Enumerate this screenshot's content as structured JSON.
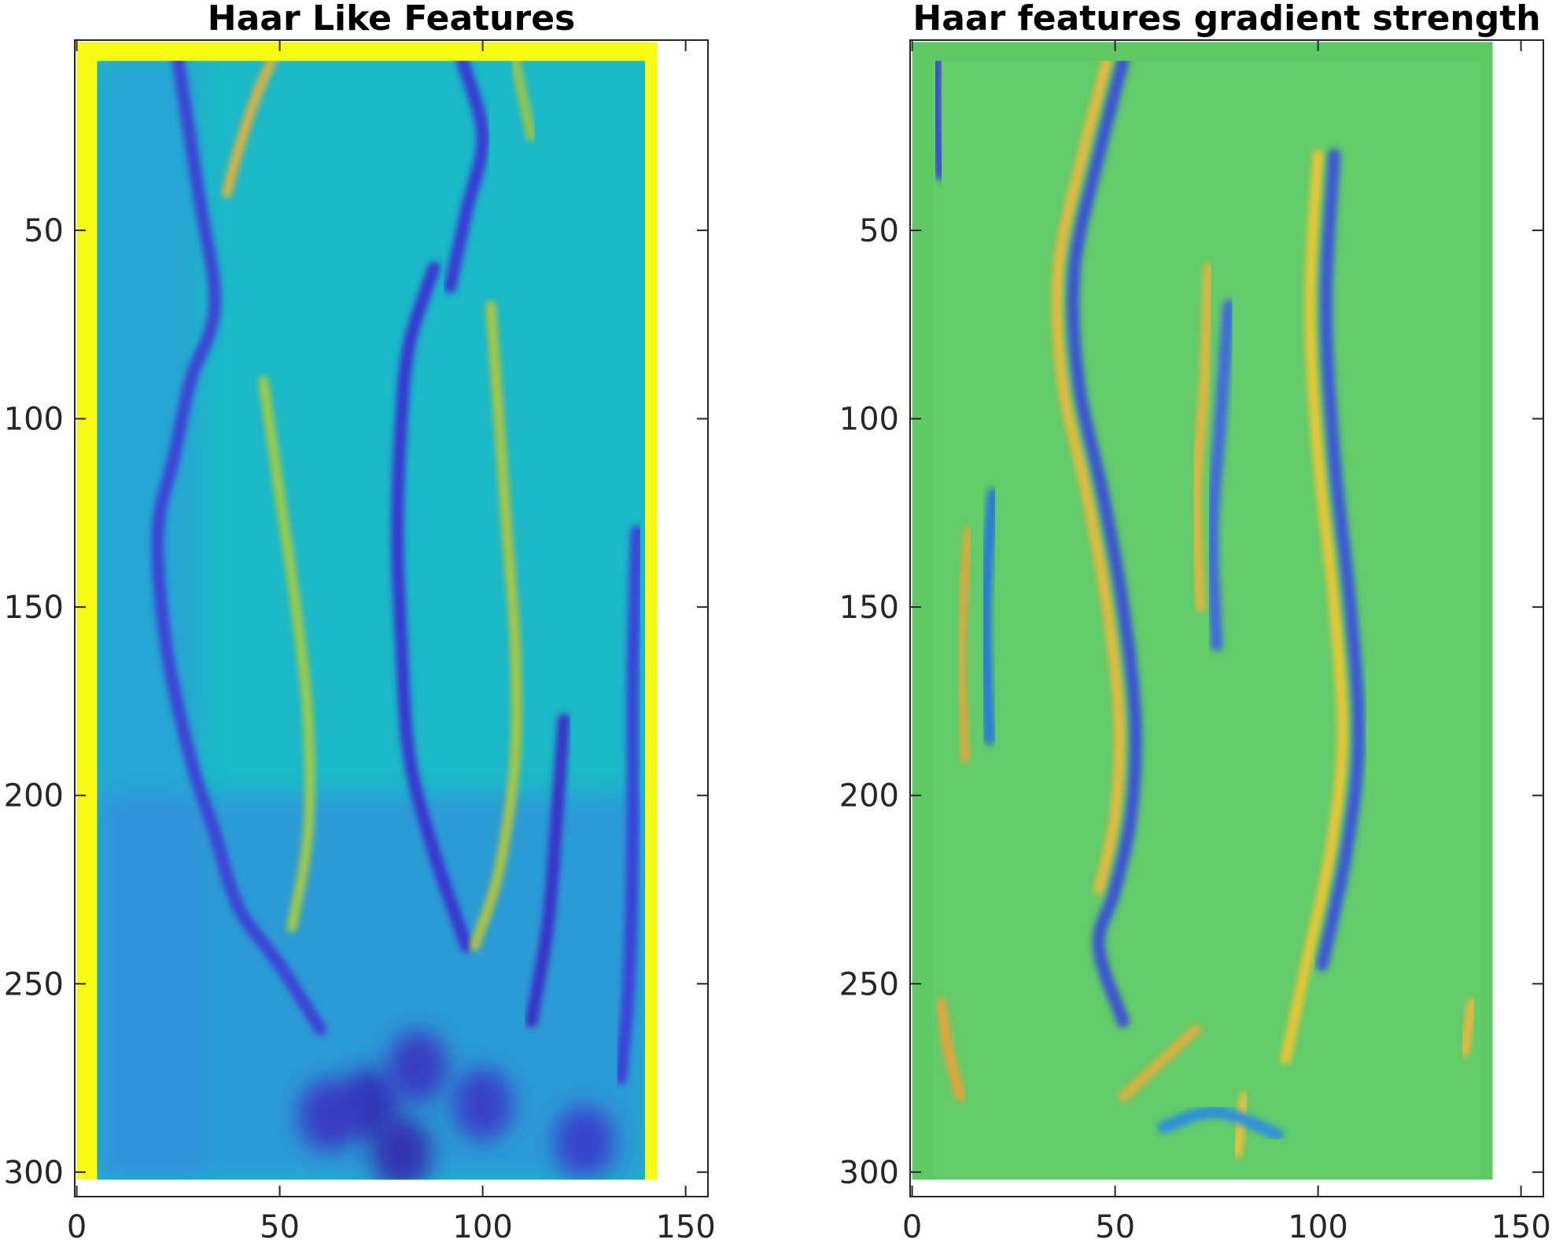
{
  "chart_data": [
    {
      "type": "heatmap",
      "title": "Haar Like Features",
      "xlabel": "",
      "ylabel": "",
      "xlim": [
        -0.5,
        155.5
      ],
      "ylim": [
        306.5,
        -0.5
      ],
      "image_extent": {
        "x": [
          0,
          143
        ],
        "y": [
          0,
          302
        ]
      },
      "inner_extent": {
        "x": [
          5,
          140
        ],
        "y": [
          5,
          302
        ]
      },
      "xticks": [
        0,
        50,
        100,
        150
      ],
      "yticks": [
        50,
        100,
        150,
        200,
        250,
        300
      ],
      "grid": false,
      "colormap": "parula",
      "border_color": "#f9fa14",
      "background_color": "#1bb8c8",
      "ridges": [
        {
          "kind": "low",
          "color": "#3e3fd6",
          "points": [
            [
              25,
              5
            ],
            [
              30,
              40
            ],
            [
              34,
              70
            ],
            [
              28,
              90
            ],
            [
              24,
              110
            ],
            [
              20,
              130
            ],
            [
              22,
              160
            ],
            [
              28,
              190
            ],
            [
              34,
              210
            ],
            [
              40,
              230
            ],
            [
              50,
              245
            ],
            [
              60,
              262
            ]
          ]
        },
        {
          "kind": "low",
          "color": "#3a32d0",
          "points": [
            [
              88,
              60
            ],
            [
              82,
              80
            ],
            [
              80,
              100
            ],
            [
              79,
              130
            ],
            [
              80,
              160
            ],
            [
              82,
              190
            ],
            [
              88,
              215
            ],
            [
              96,
              240
            ]
          ]
        },
        {
          "kind": "low",
          "color": "#3a34d4",
          "points": [
            [
              95,
              5
            ],
            [
              100,
              25
            ],
            [
              96,
              45
            ],
            [
              92,
              65
            ]
          ]
        },
        {
          "kind": "low",
          "color": "#3b2fc8",
          "points": [
            [
              120,
              180
            ],
            [
              118,
              210
            ],
            [
              116,
              235
            ],
            [
              112,
              260
            ]
          ]
        },
        {
          "kind": "low",
          "color": "#3d3cd8",
          "points": [
            [
              138,
              130
            ],
            [
              137,
              170
            ],
            [
              137,
              210
            ],
            [
              136,
              250
            ],
            [
              134,
              275
            ]
          ]
        },
        {
          "kind": "high",
          "color": "#a8cc40",
          "points": [
            [
              46,
              90
            ],
            [
              50,
              120
            ],
            [
              54,
              150
            ],
            [
              57,
              180
            ],
            [
              57,
              210
            ],
            [
              53,
              235
            ]
          ]
        },
        {
          "kind": "high",
          "color": "#b6c838",
          "points": [
            [
              102,
              70
            ],
            [
              104,
              100
            ],
            [
              106,
              130
            ],
            [
              108,
              160
            ],
            [
              108,
              190
            ],
            [
              104,
              220
            ],
            [
              98,
              240
            ]
          ]
        },
        {
          "kind": "high",
          "color": "#e3b23a",
          "points": [
            [
              48,
              5
            ],
            [
              44,
              15
            ],
            [
              40,
              28
            ],
            [
              37,
              40
            ]
          ]
        },
        {
          "kind": "high",
          "color": "#9cc64a",
          "points": [
            [
              108,
              5
            ],
            [
              110,
              15
            ],
            [
              112,
              25
            ]
          ]
        }
      ],
      "dark_blobs": [
        {
          "cx": 72,
          "cy": 282,
          "color": "#3625b2"
        },
        {
          "cx": 80,
          "cy": 295,
          "color": "#3522a8"
        },
        {
          "cx": 62,
          "cy": 285,
          "color": "#3a2fc2"
        },
        {
          "cx": 100,
          "cy": 282,
          "color": "#3a33c8"
        },
        {
          "cx": 125,
          "cy": 292,
          "color": "#3b35cc"
        },
        {
          "cx": 84,
          "cy": 272,
          "color": "#3a2fc0"
        }
      ]
    },
    {
      "type": "heatmap",
      "title": "Haar features gradient strength",
      "xlabel": "",
      "ylabel": "",
      "xlim": [
        -0.5,
        155.5
      ],
      "ylim": [
        306.5,
        -0.5
      ],
      "image_extent": {
        "x": [
          0,
          143
        ],
        "y": [
          0,
          302
        ]
      },
      "inner_extent": {
        "x": [
          5,
          140
        ],
        "y": [
          5,
          302
        ]
      },
      "xticks": [
        0,
        50,
        100,
        150
      ],
      "yticks": [
        50,
        100,
        150,
        200,
        250,
        300
      ],
      "grid": false,
      "colormap": "parula",
      "border_color": "#5ec962",
      "background_color": "#62cb6a",
      "ridges": [
        {
          "kind": "high",
          "color": "#f1b83a",
          "points": [
            [
              48,
              5
            ],
            [
              42,
              30
            ],
            [
              36,
              60
            ],
            [
              37,
              90
            ],
            [
              43,
              120
            ],
            [
              48,
              150
            ],
            [
              51,
              180
            ],
            [
              50,
              205
            ],
            [
              46,
              225
            ]
          ]
        },
        {
          "kind": "low",
          "color": "#3b4fd8",
          "points": [
            [
              52,
              5
            ],
            [
              46,
              30
            ],
            [
              40,
              60
            ],
            [
              41,
              90
            ],
            [
              47,
              120
            ],
            [
              52,
              150
            ],
            [
              55,
              180
            ],
            [
              54,
              205
            ],
            [
              50,
              225
            ],
            [
              46,
              240
            ],
            [
              52,
              260
            ]
          ]
        },
        {
          "kind": "high",
          "color": "#f7c632",
          "points": [
            [
              100,
              30
            ],
            [
              98,
              70
            ],
            [
              100,
              110
            ],
            [
              104,
              150
            ],
            [
              106,
              185
            ],
            [
              103,
              215
            ],
            [
              97,
              245
            ],
            [
              92,
              270
            ]
          ]
        },
        {
          "kind": "low",
          "color": "#3b52dc",
          "points": [
            [
              104,
              30
            ],
            [
              102,
              70
            ],
            [
              104,
              110
            ],
            [
              108,
              150
            ],
            [
              110,
              185
            ],
            [
              107,
              215
            ],
            [
              101,
              245
            ]
          ]
        },
        {
          "kind": "high",
          "color": "#e8b43e",
          "points": [
            [
              73,
              60
            ],
            [
              72,
              90
            ],
            [
              70,
              120
            ],
            [
              71,
              150
            ]
          ]
        },
        {
          "kind": "low",
          "color": "#4066e0",
          "points": [
            [
              78,
              70
            ],
            [
              76,
              100
            ],
            [
              74,
              130
            ],
            [
              75,
              160
            ]
          ]
        },
        {
          "kind": "high",
          "color": "#e2a83e",
          "points": [
            [
              14,
              130
            ],
            [
              12,
              160
            ],
            [
              13,
              190
            ]
          ]
        },
        {
          "kind": "low",
          "color": "#2a76dc",
          "points": [
            [
              20,
              120
            ],
            [
              18,
              150
            ],
            [
              19,
              185
            ]
          ]
        },
        {
          "kind": "low",
          "color": "#3b49d4",
          "points": [
            [
              6,
              5
            ],
            [
              6,
              20
            ],
            [
              7,
              35
            ]
          ]
        },
        {
          "kind": "high",
          "color": "#f0a238",
          "points": [
            [
              7,
              255
            ],
            [
              9,
              268
            ],
            [
              12,
              280
            ]
          ]
        },
        {
          "kind": "high",
          "color": "#f4b53a",
          "points": [
            [
              138,
              255
            ],
            [
              136,
              268
            ]
          ]
        },
        {
          "kind": "high",
          "color": "#f2c03a",
          "points": [
            [
              82,
              280
            ],
            [
              80,
              295
            ]
          ]
        },
        {
          "kind": "high",
          "color": "#e6ae3c",
          "points": [
            [
              70,
              262
            ],
            [
              60,
              272
            ],
            [
              52,
              280
            ]
          ]
        },
        {
          "kind": "low",
          "color": "#2f8ee0",
          "points": [
            [
              62,
              288
            ],
            [
              75,
              284
            ],
            [
              90,
              290
            ]
          ]
        }
      ],
      "dark_blobs": []
    }
  ]
}
